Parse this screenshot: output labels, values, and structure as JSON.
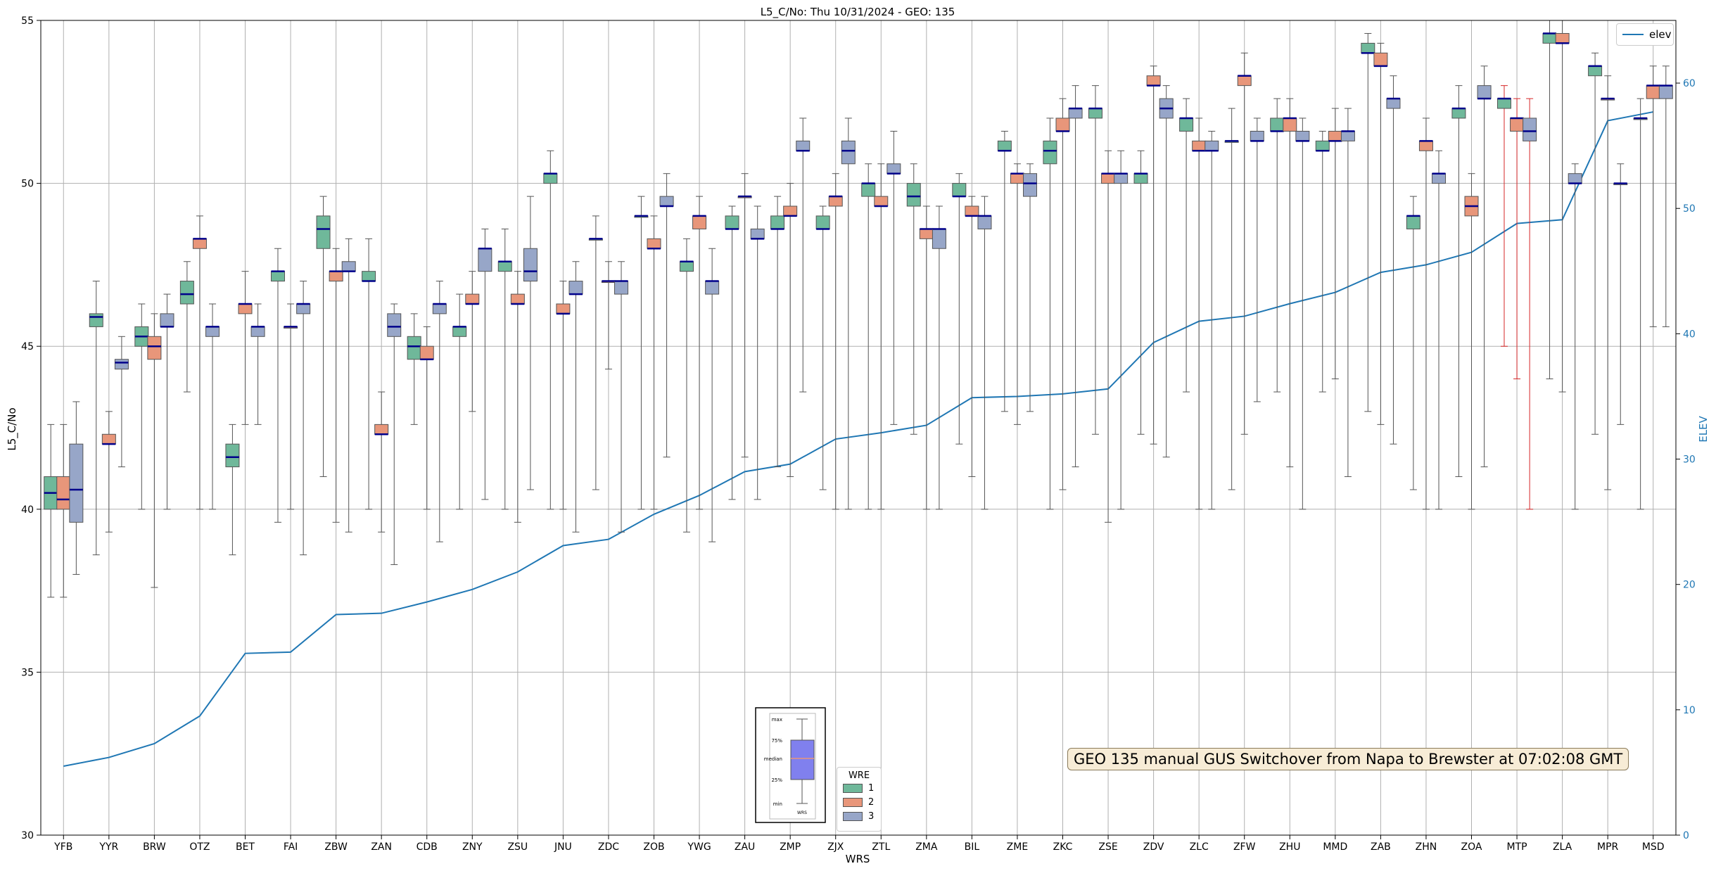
{
  "chart_data": {
    "type": "box",
    "title": "L5_C/No: Thu 10/31/2024 - GEO: 135",
    "xlabel": "WRS",
    "ylabel": "L5_C/No",
    "y2label": "ELEV",
    "ylim": [
      30,
      55
    ],
    "y2lim": [
      0,
      65
    ],
    "yticks": [
      30,
      35,
      40,
      45,
      50,
      55
    ],
    "y2ticks": [
      0,
      10,
      20,
      30,
      40,
      50,
      60
    ],
    "grid": true,
    "categories": [
      "YFB",
      "YYR",
      "BRW",
      "OTZ",
      "BET",
      "FAI",
      "ZBW",
      "ZAN",
      "CDB",
      "ZNY",
      "ZSU",
      "JNU",
      "ZDC",
      "ZOB",
      "YWG",
      "ZAU",
      "ZMP",
      "ZJX",
      "ZTL",
      "ZMA",
      "BIL",
      "ZME",
      "ZKC",
      "ZSE",
      "ZDV",
      "ZLC",
      "ZFW",
      "ZHU",
      "MMD",
      "ZAB",
      "ZHN",
      "ZOA",
      "MTP",
      "ZLA",
      "MPR",
      "MSD"
    ],
    "wre_colors": {
      "1": "#6fb89a",
      "2": "#e8967a",
      "3": "#97a6c8"
    },
    "series_elev": {
      "name": "elev",
      "color": "#1f77b4",
      "values": [
        5.5,
        6.2,
        7.3,
        9.5,
        14.5,
        14.6,
        17.6,
        17.7,
        18.6,
        19.6,
        21.0,
        23.1,
        23.6,
        25.6,
        27.1,
        29.0,
        29.6,
        31.6,
        32.1,
        32.7,
        34.9,
        35.0,
        35.2,
        35.6,
        39.3,
        41.0,
        41.4,
        42.4,
        43.3,
        44.9,
        45.5,
        46.5,
        48.8,
        49.1,
        57.0,
        57.7
      ]
    },
    "boxes": [
      {
        "cat": "YFB",
        "wre": 1,
        "min": 37.3,
        "q1": 40,
        "med": 40.5,
        "q3": 41,
        "max": 42.6
      },
      {
        "cat": "YFB",
        "wre": 2,
        "min": 37.3,
        "q1": 40,
        "med": 40.3,
        "q3": 41,
        "max": 42.6
      },
      {
        "cat": "YFB",
        "wre": 3,
        "min": 38,
        "q1": 39.6,
        "med": 40.6,
        "q3": 42,
        "max": 43.3
      },
      {
        "cat": "YYR",
        "wre": 1,
        "min": 38.6,
        "q1": 45.6,
        "med": 45.9,
        "q3": 46,
        "max": 47
      },
      {
        "cat": "YYR",
        "wre": 2,
        "min": 39.3,
        "q1": 42,
        "med": 42,
        "q3": 42.3,
        "max": 43
      },
      {
        "cat": "YYR",
        "wre": 3,
        "min": 41.3,
        "q1": 44.3,
        "med": 44.5,
        "q3": 44.6,
        "max": 45.3
      },
      {
        "cat": "BRW",
        "wre": 1,
        "min": 40,
        "q1": 45,
        "med": 45.3,
        "q3": 45.6,
        "max": 46.3
      },
      {
        "cat": "BRW",
        "wre": 2,
        "min": 37.6,
        "q1": 44.6,
        "med": 45,
        "q3": 45.3,
        "max": 46
      },
      {
        "cat": "BRW",
        "wre": 3,
        "min": 40,
        "q1": 45.6,
        "med": 45.6,
        "q3": 46,
        "max": 46.6
      },
      {
        "cat": "OTZ",
        "wre": 1,
        "min": 43.6,
        "q1": 46.3,
        "med": 46.6,
        "q3": 47,
        "max": 47.6
      },
      {
        "cat": "OTZ",
        "wre": 2,
        "min": 40,
        "q1": 48,
        "med": 48.3,
        "q3": 48.3,
        "max": 49
      },
      {
        "cat": "OTZ",
        "wre": 3,
        "min": 40,
        "q1": 45.3,
        "med": 45.6,
        "q3": 45.6,
        "max": 46.3
      },
      {
        "cat": "BET",
        "wre": 1,
        "min": 38.6,
        "q1": 41.3,
        "med": 41.6,
        "q3": 42,
        "max": 42.6
      },
      {
        "cat": "BET",
        "wre": 2,
        "min": 42.6,
        "q1": 46,
        "med": 46.3,
        "q3": 46.3,
        "max": 47.3
      },
      {
        "cat": "BET",
        "wre": 3,
        "min": 42.6,
        "q1": 45.3,
        "med": 45.6,
        "q3": 45.6,
        "max": 46.3
      },
      {
        "cat": "FAI",
        "wre": 1,
        "min": 39.6,
        "q1": 47,
        "med": 47.3,
        "q3": 47.3,
        "max": 48
      },
      {
        "cat": "FAI",
        "wre": 2,
        "min": 40,
        "q1": 45.6,
        "med": 45.6,
        "q3": 45.6,
        "max": 46.3
      },
      {
        "cat": "FAI",
        "wre": 3,
        "min": 38.6,
        "q1": 46,
        "med": 46.3,
        "q3": 46.3,
        "max": 47
      },
      {
        "cat": "ZBW",
        "wre": 1,
        "min": 41,
        "q1": 48,
        "med": 48.6,
        "q3": 49,
        "max": 49.6
      },
      {
        "cat": "ZBW",
        "wre": 2,
        "min": 39.6,
        "q1": 47,
        "med": 47.3,
        "q3": 47.3,
        "max": 48
      },
      {
        "cat": "ZBW",
        "wre": 3,
        "min": 39.3,
        "q1": 47.3,
        "med": 47.3,
        "q3": 47.6,
        "max": 48.3
      },
      {
        "cat": "ZAN",
        "wre": 1,
        "min": 40,
        "q1": 47,
        "med": 47,
        "q3": 47.3,
        "max": 48.3
      },
      {
        "cat": "ZAN",
        "wre": 2,
        "min": 39.3,
        "q1": 42.3,
        "med": 42.3,
        "q3": 42.6,
        "max": 43.6
      },
      {
        "cat": "ZAN",
        "wre": 3,
        "min": 38.3,
        "q1": 45.3,
        "med": 45.6,
        "q3": 46,
        "max": 46.3
      },
      {
        "cat": "CDB",
        "wre": 1,
        "min": 42.6,
        "q1": 44.6,
        "med": 45,
        "q3": 45.3,
        "max": 46
      },
      {
        "cat": "CDB",
        "wre": 2,
        "min": 40,
        "q1": 44.6,
        "med": 44.6,
        "q3": 45,
        "max": 45.6
      },
      {
        "cat": "CDB",
        "wre": 3,
        "min": 39,
        "q1": 46,
        "med": 46.3,
        "q3": 46.3,
        "max": 47
      },
      {
        "cat": "ZNY",
        "wre": 1,
        "min": 40,
        "q1": 45.3,
        "med": 45.6,
        "q3": 45.6,
        "max": 46.6
      },
      {
        "cat": "ZNY",
        "wre": 2,
        "min": 43,
        "q1": 46.3,
        "med": 46.3,
        "q3": 46.6,
        "max": 47.3
      },
      {
        "cat": "ZNY",
        "wre": 3,
        "min": 40.3,
        "q1": 47.3,
        "med": 48,
        "q3": 48,
        "max": 48.6
      },
      {
        "cat": "ZSU",
        "wre": 1,
        "min": 40,
        "q1": 47.3,
        "med": 47.6,
        "q3": 47.6,
        "max": 48.6
      },
      {
        "cat": "ZSU",
        "wre": 2,
        "min": 39.6,
        "q1": 46.3,
        "med": 46.3,
        "q3": 46.6,
        "max": 47.3
      },
      {
        "cat": "ZSU",
        "wre": 3,
        "min": 40.6,
        "q1": 47,
        "med": 47.3,
        "q3": 48,
        "max": 49.6
      },
      {
        "cat": "JNU",
        "wre": 1,
        "min": 40,
        "q1": 50,
        "med": 50.3,
        "q3": 50.3,
        "max": 51
      },
      {
        "cat": "JNU",
        "wre": 2,
        "min": 40,
        "q1": 46,
        "med": 46,
        "q3": 46.3,
        "max": 47
      },
      {
        "cat": "JNU",
        "wre": 3,
        "min": 39.3,
        "q1": 46.6,
        "med": 46.6,
        "q3": 47,
        "max": 47.6
      },
      {
        "cat": "ZDC",
        "wre": 1,
        "min": 40.6,
        "q1": 48.3,
        "med": 48.3,
        "q3": 48.3,
        "max": 49
      },
      {
        "cat": "ZDC",
        "wre": 2,
        "min": 44.3,
        "q1": 47,
        "med": 47,
        "q3": 47,
        "max": 47.6
      },
      {
        "cat": "ZDC",
        "wre": 3,
        "min": 39.3,
        "q1": 46.6,
        "med": 47,
        "q3": 47,
        "max": 47.6
      },
      {
        "cat": "ZOB",
        "wre": 1,
        "min": 40,
        "q1": 49,
        "med": 49,
        "q3": 49,
        "max": 49.6
      },
      {
        "cat": "ZOB",
        "wre": 2,
        "min": 40,
        "q1": 48,
        "med": 48,
        "q3": 48.3,
        "max": 49
      },
      {
        "cat": "ZOB",
        "wre": 3,
        "min": 41.6,
        "q1": 49.3,
        "med": 49.3,
        "q3": 49.6,
        "max": 50.3
      },
      {
        "cat": "YWG",
        "wre": 1,
        "min": 39.3,
        "q1": 47.3,
        "med": 47.6,
        "q3": 47.6,
        "max": 48.3
      },
      {
        "cat": "YWG",
        "wre": 2,
        "min": 40,
        "q1": 48.6,
        "med": 49,
        "q3": 49,
        "max": 49.6
      },
      {
        "cat": "YWG",
        "wre": 3,
        "min": 39,
        "q1": 46.6,
        "med": 47,
        "q3": 47,
        "max": 48
      },
      {
        "cat": "ZAU",
        "wre": 1,
        "min": 40.3,
        "q1": 48.6,
        "med": 48.6,
        "q3": 49,
        "max": 49.3
      },
      {
        "cat": "ZAU",
        "wre": 2,
        "min": 41.6,
        "q1": 49.6,
        "med": 49.6,
        "q3": 49.6,
        "max": 50.3
      },
      {
        "cat": "ZAU",
        "wre": 3,
        "min": 40.3,
        "q1": 48.3,
        "med": 48.3,
        "q3": 48.6,
        "max": 49.3
      },
      {
        "cat": "ZMP",
        "wre": 1,
        "min": 41.3,
        "q1": 48.6,
        "med": 48.6,
        "q3": 49,
        "max": 49.6
      },
      {
        "cat": "ZMP",
        "wre": 2,
        "min": 41,
        "q1": 49,
        "med": 49,
        "q3": 49.3,
        "max": 50
      },
      {
        "cat": "ZMP",
        "wre": 3,
        "min": 43.6,
        "q1": 51,
        "med": 51,
        "q3": 51.3,
        "max": 52
      },
      {
        "cat": "ZJX",
        "wre": 1,
        "min": 40.6,
        "q1": 48.6,
        "med": 48.6,
        "q3": 49,
        "max": 49.3
      },
      {
        "cat": "ZJX",
        "wre": 2,
        "min": 40,
        "q1": 49.3,
        "med": 49.6,
        "q3": 49.6,
        "max": 50.3
      },
      {
        "cat": "ZJX",
        "wre": 3,
        "min": 40,
        "q1": 50.6,
        "med": 51,
        "q3": 51.3,
        "max": 52
      },
      {
        "cat": "ZTL",
        "wre": 1,
        "min": 40,
        "q1": 49.6,
        "med": 50,
        "q3": 50,
        "max": 50.6
      },
      {
        "cat": "ZTL",
        "wre": 2,
        "min": 40,
        "q1": 49.3,
        "med": 49.3,
        "q3": 49.6,
        "max": 50.6
      },
      {
        "cat": "ZTL",
        "wre": 3,
        "min": 42.6,
        "q1": 50.3,
        "med": 50.3,
        "q3": 50.6,
        "max": 51.6
      },
      {
        "cat": "ZMA",
        "wre": 1,
        "min": 42.3,
        "q1": 49.3,
        "med": 49.6,
        "q3": 50,
        "max": 50.6
      },
      {
        "cat": "ZMA",
        "wre": 2,
        "min": 40,
        "q1": 48.3,
        "med": 48.6,
        "q3": 48.6,
        "max": 49.3
      },
      {
        "cat": "ZMA",
        "wre": 3,
        "min": 40,
        "q1": 48,
        "med": 48.6,
        "q3": 48.6,
        "max": 49.3
      },
      {
        "cat": "BIL",
        "wre": 1,
        "min": 42,
        "q1": 49.6,
        "med": 49.6,
        "q3": 50,
        "max": 50.3
      },
      {
        "cat": "BIL",
        "wre": 2,
        "min": 41,
        "q1": 49,
        "med": 49,
        "q3": 49.3,
        "max": 49.6
      },
      {
        "cat": "BIL",
        "wre": 3,
        "min": 40,
        "q1": 48.6,
        "med": 49,
        "q3": 49,
        "max": 49.6
      },
      {
        "cat": "ZME",
        "wre": 1,
        "min": 43,
        "q1": 51,
        "med": 51,
        "q3": 51.3,
        "max": 51.6
      },
      {
        "cat": "ZME",
        "wre": 2,
        "min": 42.6,
        "q1": 50,
        "med": 50.3,
        "q3": 50.3,
        "max": 50.6
      },
      {
        "cat": "ZME",
        "wre": 3,
        "min": 43,
        "q1": 49.6,
        "med": 50,
        "q3": 50.3,
        "max": 50.6
      },
      {
        "cat": "ZKC",
        "wre": 1,
        "min": 40,
        "q1": 50.6,
        "med": 51,
        "q3": 51.3,
        "max": 52
      },
      {
        "cat": "ZKC",
        "wre": 2,
        "min": 40.6,
        "q1": 51.6,
        "med": 51.6,
        "q3": 52,
        "max": 52.6
      },
      {
        "cat": "ZKC",
        "wre": 3,
        "min": 41.3,
        "q1": 52,
        "med": 52.3,
        "q3": 52.3,
        "max": 53
      },
      {
        "cat": "ZSE",
        "wre": 1,
        "min": 42.3,
        "q1": 52,
        "med": 52.3,
        "q3": 52.3,
        "max": 53
      },
      {
        "cat": "ZSE",
        "wre": 2,
        "min": 39.6,
        "q1": 50,
        "med": 50.3,
        "q3": 50.3,
        "max": 51
      },
      {
        "cat": "ZSE",
        "wre": 3,
        "min": 40,
        "q1": 50,
        "med": 50.3,
        "q3": 50.3,
        "max": 51
      },
      {
        "cat": "ZDV",
        "wre": 1,
        "min": 42.3,
        "q1": 50,
        "med": 50.3,
        "q3": 50.3,
        "max": 51
      },
      {
        "cat": "ZDV",
        "wre": 2,
        "min": 42,
        "q1": 53,
        "med": 53,
        "q3": 53.3,
        "max": 53.6
      },
      {
        "cat": "ZDV",
        "wre": 3,
        "min": 41.6,
        "q1": 52,
        "med": 52.3,
        "q3": 52.6,
        "max": 53
      },
      {
        "cat": "ZLC",
        "wre": 1,
        "min": 43.6,
        "q1": 51.6,
        "med": 52,
        "q3": 52,
        "max": 52.6
      },
      {
        "cat": "ZLC",
        "wre": 2,
        "min": 40,
        "q1": 51,
        "med": 51,
        "q3": 51.3,
        "max": 52
      },
      {
        "cat": "ZLC",
        "wre": 3,
        "min": 40,
        "q1": 51,
        "med": 51,
        "q3": 51.3,
        "max": 51.6
      },
      {
        "cat": "ZFW",
        "wre": 1,
        "min": 40.6,
        "q1": 51.3,
        "med": 51.3,
        "q3": 51.3,
        "max": 52.3
      },
      {
        "cat": "ZFW",
        "wre": 2,
        "min": 42.3,
        "q1": 53,
        "med": 53.3,
        "q3": 53.3,
        "max": 54
      },
      {
        "cat": "ZFW",
        "wre": 3,
        "min": 43.3,
        "q1": 51.3,
        "med": 51.3,
        "q3": 51.6,
        "max": 52
      },
      {
        "cat": "ZHU",
        "wre": 1,
        "min": 43.6,
        "q1": 51.6,
        "med": 51.6,
        "q3": 52,
        "max": 52.6
      },
      {
        "cat": "ZHU",
        "wre": 2,
        "min": 41.3,
        "q1": 51.6,
        "med": 52,
        "q3": 52,
        "max": 52.6
      },
      {
        "cat": "ZHU",
        "wre": 3,
        "min": 40,
        "q1": 51.3,
        "med": 51.3,
        "q3": 51.6,
        "max": 52
      },
      {
        "cat": "MMD",
        "wre": 1,
        "min": 43.6,
        "q1": 51,
        "med": 51,
        "q3": 51.3,
        "max": 51.6
      },
      {
        "cat": "MMD",
        "wre": 2,
        "min": 44,
        "q1": 51.3,
        "med": 51.3,
        "q3": 51.6,
        "max": 52.3
      },
      {
        "cat": "MMD",
        "wre": 3,
        "min": 41,
        "q1": 51.3,
        "med": 51.6,
        "q3": 51.6,
        "max": 52.3
      },
      {
        "cat": "ZAB",
        "wre": 1,
        "min": 43,
        "q1": 54,
        "med": 54,
        "q3": 54.3,
        "max": 54.6
      },
      {
        "cat": "ZAB",
        "wre": 2,
        "min": 42.6,
        "q1": 53.6,
        "med": 53.6,
        "q3": 54,
        "max": 54.3
      },
      {
        "cat": "ZAB",
        "wre": 3,
        "min": 42,
        "q1": 52.3,
        "med": 52.6,
        "q3": 52.6,
        "max": 53.3
      },
      {
        "cat": "ZHN",
        "wre": 1,
        "min": 40.6,
        "q1": 48.6,
        "med": 49,
        "q3": 49,
        "max": 49.6
      },
      {
        "cat": "ZHN",
        "wre": 2,
        "min": 40,
        "q1": 51,
        "med": 51.3,
        "q3": 51.3,
        "max": 52
      },
      {
        "cat": "ZHN",
        "wre": 3,
        "min": 40,
        "q1": 50,
        "med": 50.3,
        "q3": 50.3,
        "max": 51
      },
      {
        "cat": "ZOA",
        "wre": 1,
        "min": 41,
        "q1": 52,
        "med": 52.3,
        "q3": 52.3,
        "max": 53
      },
      {
        "cat": "ZOA",
        "wre": 2,
        "min": 40,
        "q1": 49,
        "med": 49.3,
        "q3": 49.6,
        "max": 50.3
      },
      {
        "cat": "ZOA",
        "wre": 3,
        "min": 41.3,
        "q1": 52.6,
        "med": 52.6,
        "q3": 53,
        "max": 53.6
      },
      {
        "cat": "MTP",
        "wre": 1,
        "min": 45,
        "q1": 52.3,
        "med": 52.6,
        "q3": 52.6,
        "max": 53,
        "whisker_color": "#d62728"
      },
      {
        "cat": "MTP",
        "wre": 2,
        "min": 44,
        "q1": 51.6,
        "med": 52,
        "q3": 52,
        "max": 52.6,
        "whisker_color": "#d62728"
      },
      {
        "cat": "MTP",
        "wre": 3,
        "min": 40,
        "q1": 51.3,
        "med": 51.6,
        "q3": 52,
        "max": 52.6,
        "whisker_color": "#d62728"
      },
      {
        "cat": "ZLA",
        "wre": 1,
        "min": 44,
        "q1": 54.3,
        "med": 54.6,
        "q3": 54.6,
        "max": 55
      },
      {
        "cat": "ZLA",
        "wre": 2,
        "min": 43.6,
        "q1": 54.3,
        "med": 54.3,
        "q3": 54.6,
        "max": 55
      },
      {
        "cat": "ZLA",
        "wre": 3,
        "min": 40,
        "q1": 50,
        "med": 50,
        "q3": 50.3,
        "max": 50.6
      },
      {
        "cat": "MPR",
        "wre": 1,
        "min": 42.3,
        "q1": 53.3,
        "med": 53.6,
        "q3": 53.6,
        "max": 54
      },
      {
        "cat": "MPR",
        "wre": 2,
        "min": 40.6,
        "q1": 52.6,
        "med": 52.6,
        "q3": 52.6,
        "max": 53.3
      },
      {
        "cat": "MPR",
        "wre": 3,
        "min": 42.6,
        "q1": 50,
        "med": 50,
        "q3": 50,
        "max": 50.6
      },
      {
        "cat": "MSD",
        "wre": 1,
        "min": 40,
        "q1": 52,
        "med": 52,
        "q3": 52,
        "max": 52.6
      },
      {
        "cat": "MSD",
        "wre": 2,
        "min": 45.6,
        "q1": 52.6,
        "med": 53,
        "q3": 53,
        "max": 53.6
      },
      {
        "cat": "MSD",
        "wre": 3,
        "min": 45.6,
        "q1": 52.6,
        "med": 53,
        "q3": 53,
        "max": 53.6
      }
    ],
    "annotation": "GEO 135 manual GUS Switchover from Napa to Brewster at 07:02:08 GMT",
    "legend_elev": "elev",
    "legend_wre": {
      "title": "WRE",
      "items": [
        "1",
        "2",
        "3"
      ]
    },
    "key_labels": {
      "max": "max",
      "q3": "75%",
      "median": "median",
      "q1": "25%",
      "min": "min",
      "x": "WRS"
    }
  }
}
